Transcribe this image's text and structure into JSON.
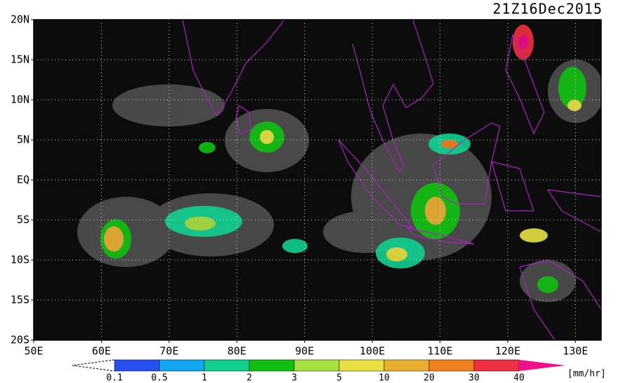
{
  "title": "21Z16Dec2015",
  "map": {
    "xlim": [
      50,
      133.8
    ],
    "ylim": [
      -20,
      20
    ],
    "lat_ticks": [
      {
        "value": 20,
        "label": "20N"
      },
      {
        "value": 15,
        "label": "15N"
      },
      {
        "value": 10,
        "label": "10N"
      },
      {
        "value": 5,
        "label": "5N"
      },
      {
        "value": 0,
        "label": "EQ"
      },
      {
        "value": -5,
        "label": "5S"
      },
      {
        "value": -10,
        "label": "10S"
      },
      {
        "value": -15,
        "label": "15S"
      },
      {
        "value": -20,
        "label": "20S"
      }
    ],
    "lon_ticks": [
      {
        "value": 50,
        "label": "50E"
      },
      {
        "value": 60,
        "label": "60E"
      },
      {
        "value": 70,
        "label": "70E"
      },
      {
        "value": 80,
        "label": "80E"
      },
      {
        "value": 90,
        "label": "90E"
      },
      {
        "value": 100,
        "label": "100E"
      },
      {
        "value": 110,
        "label": "110E"
      },
      {
        "value": 120,
        "label": "120E"
      },
      {
        "value": 130,
        "label": "130E"
      }
    ],
    "grid": true
  },
  "colorbar": {
    "levels": [
      0.1,
      0.5,
      1,
      2,
      3,
      5,
      10,
      20,
      30,
      40
    ],
    "colors": [
      "#2850f0",
      "#10a8f0",
      "#10d090",
      "#10c010",
      "#a8e040",
      "#e8e040",
      "#e8b030",
      "#f08020",
      "#f03040",
      "#f0108c"
    ],
    "unit": "[mm/hr]"
  }
}
